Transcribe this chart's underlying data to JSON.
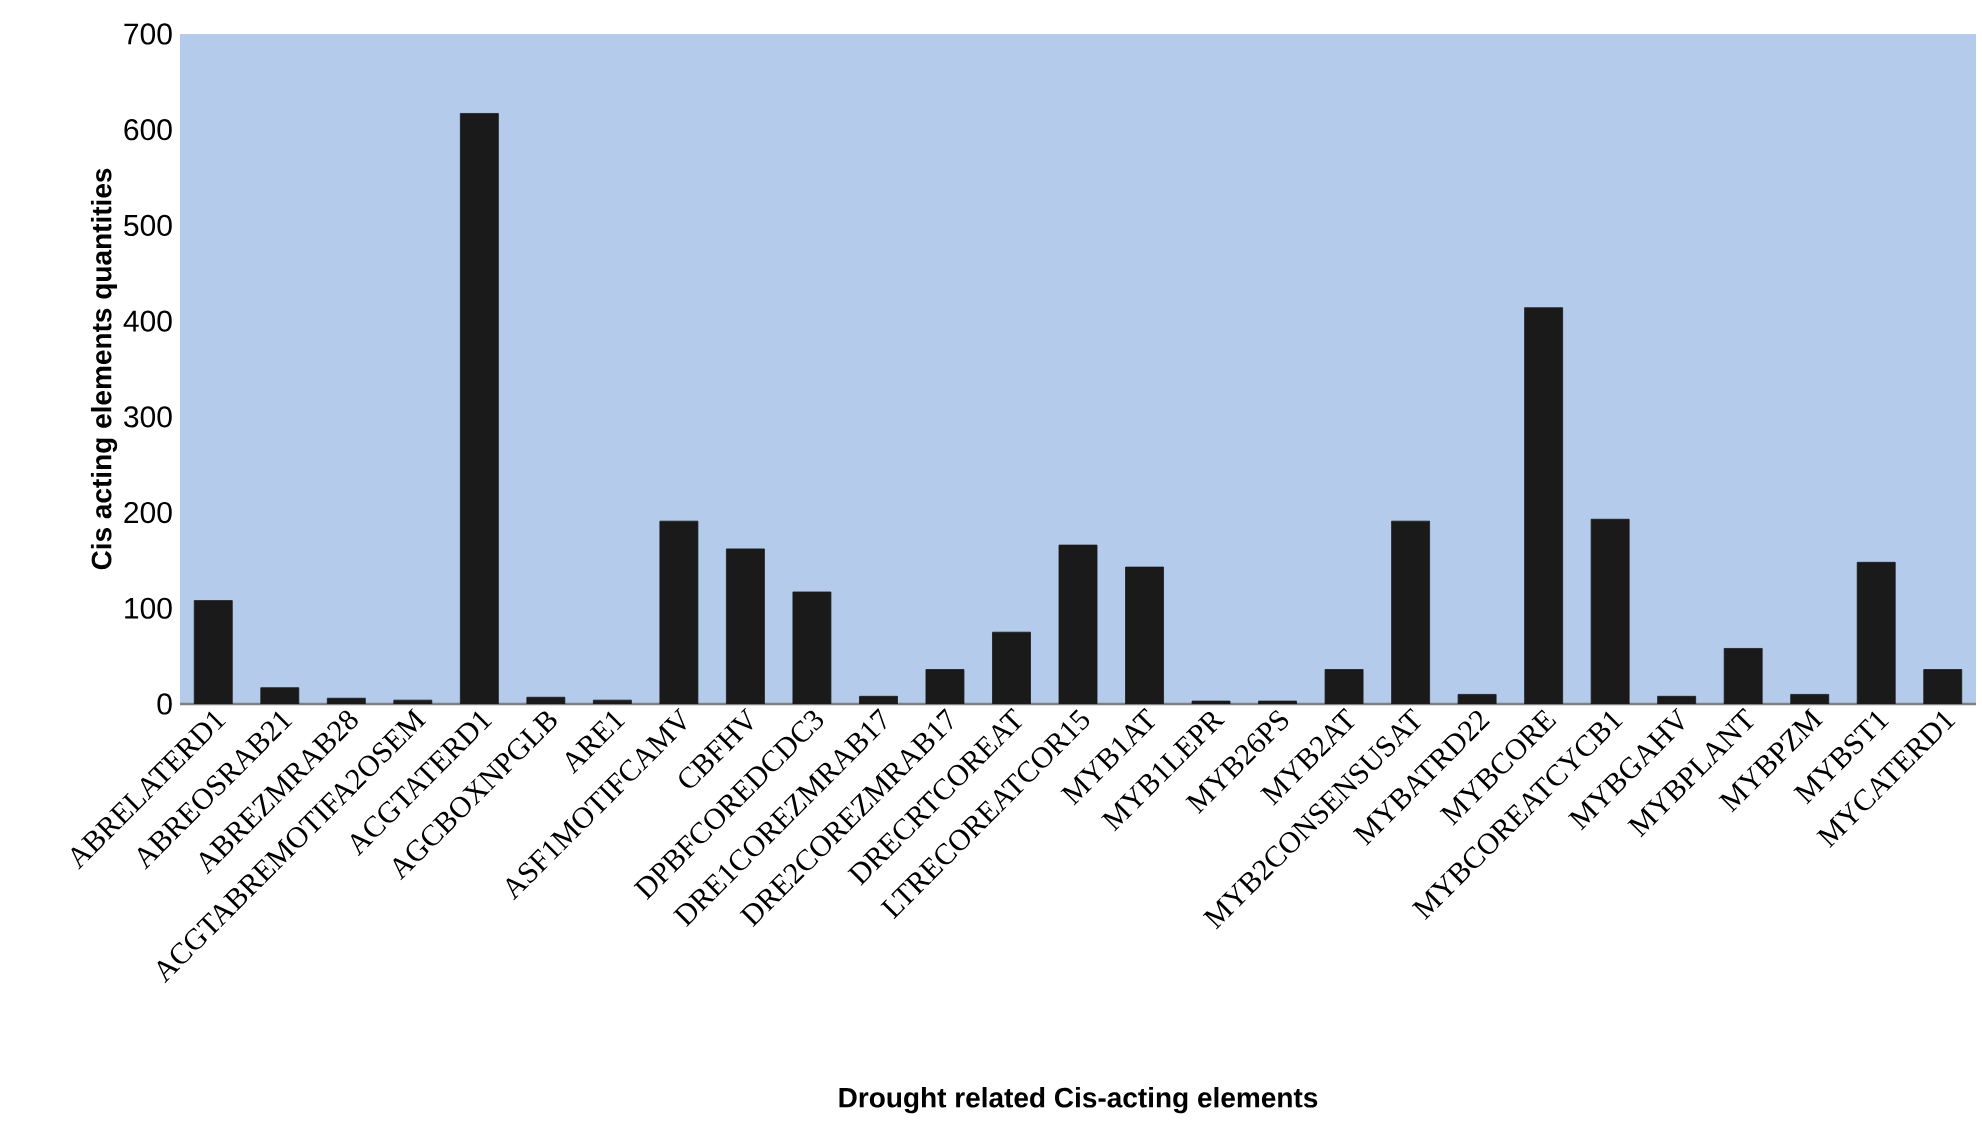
{
  "chart_data": {
    "type": "bar",
    "xlabel": "Drought related Cis-acting elements",
    "ylabel": "Cis acting elements quantities",
    "categories": [
      "ABRELATERD1",
      "ABREOSRAB21",
      "ABREZMRAB28",
      "ACGTABREMOTIFA2OSEM",
      "ACGTATERD1",
      "AGCBOXNPGLB",
      "ARE1",
      "ASF1MOTIFCAMV",
      "CBFHV",
      "DPBFCOREDCDC3",
      "DRE1COREZMRAB17",
      "DRE2COREZMRAB17",
      "DRECRTCOREAT",
      "LTRECOREATCOR15",
      "MYB1AT",
      "MYB1LEPR",
      "MYB26PS",
      "MYB2AT",
      "MYB2CONSENSUSAT",
      "MYBATRD22",
      "MYBCORE",
      "MYBCOREATCYCB1",
      "MYBGAHV",
      "MYBPLANT",
      "MYBPZM",
      "MYBST1",
      "MYCATERD1"
    ],
    "values": [
      108,
      17,
      6,
      4,
      617,
      7,
      4,
      191,
      162,
      117,
      8,
      36,
      75,
      166,
      143,
      3,
      3,
      36,
      191,
      10,
      414,
      193,
      8,
      58,
      10,
      148,
      36
    ],
    "color": "#1a1a1a",
    "ylim": [
      0,
      700
    ],
    "yticks": [
      0,
      100,
      200,
      300,
      400,
      500,
      600,
      700
    ],
    "grid": false
  }
}
